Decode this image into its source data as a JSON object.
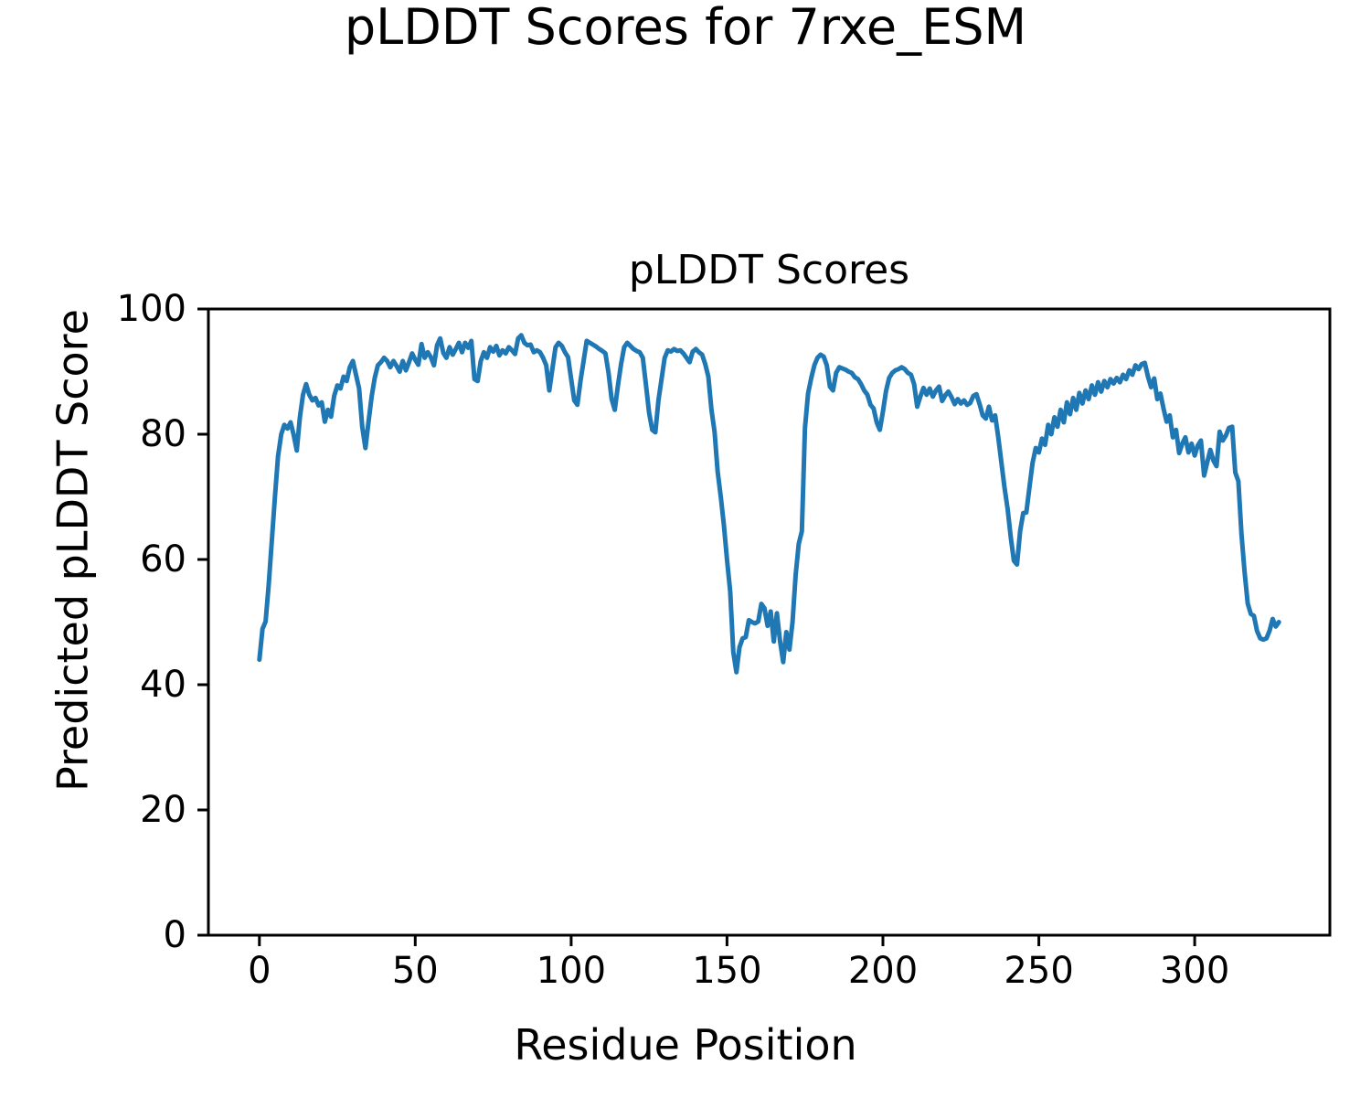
{
  "figure": {
    "suptitle": "pLDDT Scores for 7rxe_ESM",
    "axes_title": "pLDDT Scores",
    "xlabel": "Residue Position",
    "ylabel": "Predicted pLDDT Score"
  },
  "chart_data": {
    "type": "line",
    "title": "pLDDT Scores",
    "suptitle": "pLDDT Scores for 7rxe_ESM",
    "xlabel": "Residue Position",
    "ylabel": "Predicted pLDDT Score",
    "line_color": "#1f77b4",
    "spine_color": "#000000",
    "background": "#ffffff",
    "grid": false,
    "legend": false,
    "xlim": [
      -16.35,
      343.35
    ],
    "ylim": [
      0,
      100
    ],
    "x_ticks": [
      0,
      50,
      100,
      150,
      200,
      250,
      300
    ],
    "y_ticks": [
      0,
      20,
      40,
      60,
      80,
      100
    ],
    "x_start": 0,
    "x_step": 1,
    "series": [
      {
        "name": "pLDDT",
        "values": [
          44.0,
          48.9,
          50.1,
          56.0,
          63.0,
          70.0,
          76.5,
          80.0,
          81.5,
          80.9,
          81.9,
          79.9,
          77.4,
          82.7,
          86.3,
          88.0,
          86.3,
          85.4,
          85.8,
          84.6,
          85.1,
          82.0,
          83.9,
          82.8,
          86.1,
          87.8,
          87.3,
          89.2,
          88.5,
          90.7,
          91.7,
          89.5,
          87.3,
          81.2,
          77.8,
          82.0,
          86.0,
          89.0,
          91.0,
          91.5,
          92.2,
          91.7,
          90.7,
          91.7,
          90.9,
          90.0,
          91.7,
          90.2,
          91.5,
          92.9,
          91.9,
          91.1,
          94.4,
          92.2,
          93.1,
          92.3,
          91.0,
          94.2,
          95.3,
          93.0,
          92.2,
          93.9,
          92.7,
          93.6,
          94.6,
          93.1,
          94.6,
          93.8,
          94.9,
          88.8,
          88.5,
          91.7,
          93.1,
          92.2,
          93.9,
          93.2,
          94.1,
          92.6,
          93.4,
          92.9,
          93.9,
          93.4,
          92.8,
          95.3,
          95.8,
          94.6,
          94.2,
          94.3,
          93.1,
          93.4,
          93.1,
          92.2,
          91.0,
          87.0,
          90.5,
          93.9,
          94.6,
          94.1,
          93.1,
          92.3,
          88.8,
          85.4,
          84.7,
          88.5,
          91.7,
          94.9,
          94.6,
          94.3,
          94.0,
          93.6,
          93.3,
          92.9,
          89.8,
          85.6,
          83.9,
          87.8,
          91.2,
          93.9,
          94.6,
          94.1,
          93.6,
          93.3,
          93.1,
          92.2,
          87.8,
          83.4,
          80.7,
          80.3,
          85.4,
          88.8,
          92.2,
          93.4,
          93.2,
          93.6,
          93.3,
          93.4,
          92.9,
          92.2,
          91.5,
          93.2,
          93.6,
          93.1,
          92.7,
          91.2,
          89.2,
          83.9,
          80.4,
          74.0,
          70.0,
          65.5,
          60.0,
          54.9,
          45.2,
          42.0,
          46.0,
          47.4,
          47.6,
          50.3,
          50.0,
          49.8,
          50.1,
          52.9,
          52.2,
          49.4,
          51.7,
          46.9,
          51.4,
          47.0,
          43.6,
          48.4,
          45.6,
          50.0,
          57.5,
          62.5,
          64.5,
          81.0,
          86.5,
          89.0,
          91.0,
          92.2,
          92.7,
          92.4,
          91.0,
          87.6,
          87.0,
          89.8,
          90.7,
          90.5,
          90.3,
          90.0,
          89.8,
          89.1,
          88.8,
          88.0,
          87.0,
          86.3,
          84.7,
          84.1,
          81.9,
          80.7,
          83.6,
          86.9,
          89.0,
          89.8,
          90.2,
          90.4,
          90.7,
          90.4,
          89.8,
          89.5,
          88.0,
          84.4,
          86.0,
          87.4,
          86.3,
          87.3,
          86.0,
          87.0,
          87.6,
          85.3,
          86.2,
          86.8,
          85.9,
          84.8,
          85.6,
          84.9,
          85.4,
          84.7,
          85.0,
          86.1,
          86.4,
          84.8,
          83.0,
          82.5,
          84.4,
          82.2,
          83.0,
          79.5,
          75.5,
          71.5,
          68.0,
          63.5,
          59.8,
          59.2,
          64.5,
          67.4,
          67.5,
          71.5,
          75.4,
          77.8,
          77.1,
          79.3,
          78.3,
          81.5,
          80.0,
          82.7,
          81.2,
          83.9,
          81.9,
          85.1,
          83.2,
          85.8,
          83.9,
          86.6,
          84.9,
          87.0,
          85.6,
          87.8,
          86.3,
          88.3,
          86.8,
          88.5,
          87.5,
          88.8,
          88.1,
          89.0,
          88.3,
          89.5,
          88.8,
          90.2,
          89.5,
          91.0,
          90.4,
          91.2,
          91.4,
          89.2,
          87.5,
          88.9,
          85.6,
          86.5,
          84.1,
          82.0,
          83.0,
          79.5,
          80.7,
          77.0,
          78.5,
          79.5,
          77.1,
          78.5,
          76.6,
          78.2,
          79.0,
          73.4,
          75.5,
          77.5,
          75.8,
          74.9,
          80.4,
          79.0,
          79.8,
          81.0,
          81.2,
          73.9,
          72.5,
          64.0,
          58.0,
          53.0,
          51.3,
          51.0,
          48.6,
          47.4,
          47.2,
          47.4,
          48.6,
          50.5,
          49.3,
          50.0
        ]
      }
    ]
  }
}
